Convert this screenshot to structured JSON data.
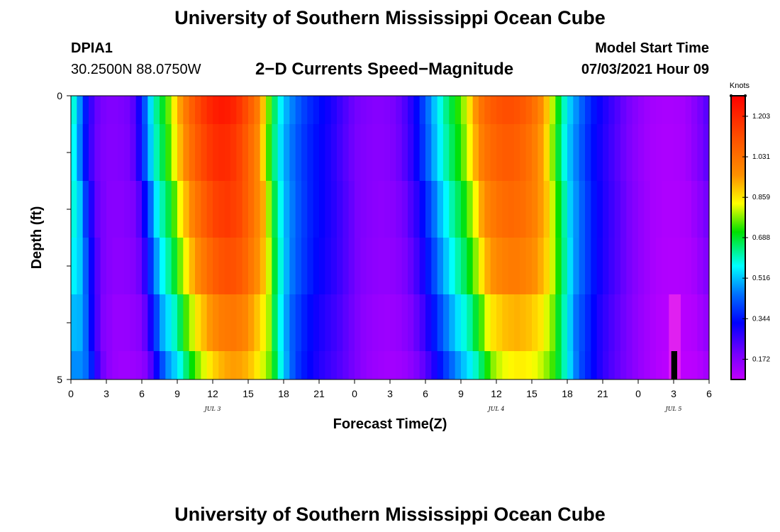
{
  "header": {
    "title": "University of Southern Mississippi Ocean Cube",
    "station": "DPIA1",
    "coords": "30.2500N  88.0750W",
    "subtitle": "2−D Currents Speed−Magnitude",
    "start_label": "Model Start Time",
    "start_value": "07/03/2021 Hour 09"
  },
  "footer": {
    "title": "University of Southern Mississippi Ocean Cube"
  },
  "chart_data": {
    "type": "heatmap",
    "title": "2-D Currents Speed-Magnitude",
    "xlabel": "Forecast Time(Z)",
    "ylabel": "Depth (ft)",
    "xlim": [
      0,
      54
    ],
    "ylim": [
      0,
      5
    ],
    "x_tick_values": [
      0,
      3,
      6,
      9,
      12,
      15,
      18,
      21,
      24,
      27,
      30,
      33,
      36,
      39,
      42,
      45,
      48,
      51,
      54
    ],
    "x_tick_labels": [
      "0",
      "3",
      "6",
      "9",
      "12",
      "15",
      "18",
      "21",
      "0",
      "3",
      "6",
      "9",
      "12",
      "15",
      "18",
      "21",
      "0",
      "3",
      "6"
    ],
    "y_tick_values": [
      0,
      5
    ],
    "y_tick_labels": [
      "0",
      "5"
    ],
    "day_labels": [
      {
        "hour": 12,
        "label": "JUL 3"
      },
      {
        "hour": 36,
        "label": "JUL 4"
      },
      {
        "hour": 51,
        "label": "JUL 5"
      }
    ],
    "colorbar": {
      "label": "Knots",
      "min": 0.086,
      "max": 1.29,
      "ticks": [
        0.172,
        0.344,
        0.516,
        0.688,
        0.859,
        1.031,
        1.203
      ],
      "tick_labels": [
        "0.172",
        "0.344",
        "0.516",
        "0.688",
        "0.859",
        "1.031",
        "1.203"
      ]
    },
    "depth_levels": [
      {
        "depth_top": 0.0,
        "depth_bottom": 0.5,
        "scale": 1.0,
        "shift": 0.0,
        "floor": 0.0
      },
      {
        "depth_top": 0.5,
        "depth_bottom": 1.5,
        "scale": 0.97,
        "shift": 0.0,
        "floor": 0.0
      },
      {
        "depth_top": 1.5,
        "depth_bottom": 2.5,
        "scale": 0.94,
        "shift": 0.3,
        "floor": 0.0
      },
      {
        "depth_top": 2.5,
        "depth_bottom": 3.5,
        "scale": 0.9,
        "shift": 0.5,
        "floor": 0.0
      },
      {
        "depth_top": 3.5,
        "depth_bottom": 4.5,
        "scale": 0.82,
        "shift": 0.7,
        "floor": 0.0
      },
      {
        "depth_top": 4.5,
        "depth_bottom": 5.0,
        "scale": 0.76,
        "shift": 1.0,
        "floor": 0.0
      }
    ],
    "surface_series": {
      "hours": [
        0,
        0.5,
        1,
        1.5,
        2,
        3,
        4,
        5,
        5.5,
        6,
        6.5,
        7,
        8,
        8.5,
        9,
        10,
        11,
        12,
        13,
        14,
        15,
        16,
        16.5,
        17,
        17.5,
        18,
        19,
        20,
        21,
        22,
        23,
        24,
        25,
        26,
        27,
        28,
        29,
        30,
        31,
        32,
        33,
        34,
        34.5,
        35,
        36,
        37,
        38,
        39,
        40,
        40.5,
        41,
        41.5,
        42,
        43,
        44,
        45,
        46,
        47,
        48,
        49,
        50,
        51,
        52,
        53,
        54
      ],
      "speed_knots": [
        0.62,
        0.55,
        0.4,
        0.3,
        0.22,
        0.18,
        0.18,
        0.2,
        0.25,
        0.36,
        0.48,
        0.6,
        0.72,
        0.8,
        0.9,
        1.05,
        1.15,
        1.22,
        1.24,
        1.2,
        1.1,
        0.98,
        0.82,
        0.7,
        0.6,
        0.52,
        0.44,
        0.38,
        0.34,
        0.3,
        0.25,
        0.2,
        0.18,
        0.17,
        0.18,
        0.22,
        0.3,
        0.42,
        0.55,
        0.66,
        0.75,
        0.9,
        1.0,
        1.05,
        1.1,
        1.12,
        1.1,
        1.05,
        0.95,
        0.85,
        0.75,
        0.65,
        0.55,
        0.45,
        0.36,
        0.3,
        0.25,
        0.2,
        0.16,
        0.13,
        0.12,
        0.12,
        0.13,
        0.18,
        0.24
      ]
    },
    "annotations": [
      {
        "type": "magenta_block",
        "hour_start": 50.6,
        "hour_end": 51.6,
        "depth_top": 3.5,
        "depth_bottom": 5.0,
        "color": "#e020f0"
      },
      {
        "type": "black_marker",
        "hour_start": 50.8,
        "hour_end": 51.3,
        "depth_top": 4.5,
        "depth_bottom": 5.0,
        "color": "#000000"
      }
    ]
  }
}
